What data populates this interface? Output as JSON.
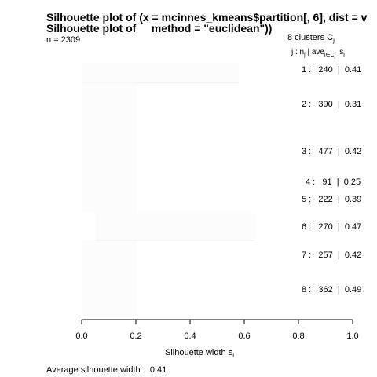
{
  "chart_data": {
    "type": "bar",
    "orientation": "horizontal",
    "title_line1": "Silhouette plot of (x = mcinnes_kmeans$partition[, 6], dist = v",
    "title_line2": "Silhouette plot of     method = \"euclidean\"))",
    "n_label": "n = 2309",
    "n_total": 2309,
    "k_label": "8   clusters   C",
    "k_subscript": "j",
    "column_header": {
      "j_n": "j :  n",
      "n_sub": "j",
      "ave": " | ave",
      "ave_sub": "i∈Cj",
      "s": "s",
      "s_sub": "i"
    },
    "clusters": [
      {
        "j": 1,
        "size": 240,
        "avg_width": 0.41,
        "label": "1 :   240  |  0.41",
        "max_width": 0.58,
        "min_width": 0.0
      },
      {
        "j": 2,
        "size": 390,
        "avg_width": 0.31,
        "label": "2 :   390  |  0.31",
        "max_width": 0.2,
        "min_width": -0.12
      },
      {
        "j": 3,
        "size": 477,
        "avg_width": 0.42,
        "label": "3 :   477  |  0.42",
        "max_width": 0.2,
        "min_width": 0.0
      },
      {
        "j": 4,
        "size": 91,
        "avg_width": 0.25,
        "label": "4 :   91  |  0.25",
        "max_width": 0.2,
        "min_width": 0.0
      },
      {
        "j": 5,
        "size": 222,
        "avg_width": 0.39,
        "label": "5 :   222  |  0.39",
        "max_width": 0.2,
        "min_width": 0.0
      },
      {
        "j": 6,
        "size": 270,
        "avg_width": 0.47,
        "label": "6 :   270  |  0.47",
        "max_width": 0.64,
        "min_width": 0.05
      },
      {
        "j": 7,
        "size": 257,
        "avg_width": 0.42,
        "label": "7 :   257  |  0.42",
        "max_width": 0.2,
        "min_width": 0.0
      },
      {
        "j": 8,
        "size": 362,
        "avg_width": 0.49,
        "label": "8 :   362  |  0.49",
        "max_width": 0.2,
        "min_width": 0.0
      }
    ],
    "xlabel": "Silhouette width s",
    "xlabel_subscript": "i",
    "xlim": [
      0,
      1
    ],
    "xticks": [
      "0.0",
      "0.2",
      "0.4",
      "0.6",
      "0.8",
      "1.0"
    ],
    "xtick_values": [
      0,
      0.2,
      0.4,
      0.6,
      0.8,
      1.0
    ],
    "average_label": "Average silhouette width :  0.41",
    "average_width": 0.41,
    "bar_color": "#f2f2f2",
    "axis_color": "#000000"
  }
}
